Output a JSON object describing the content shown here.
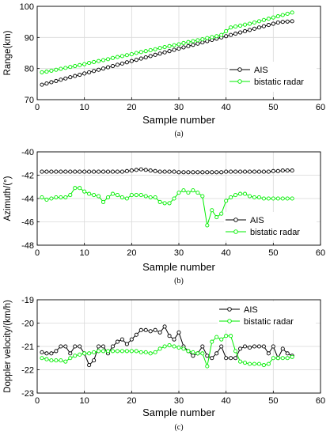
{
  "chart_data": [
    {
      "type": "line",
      "caption": "(a)",
      "xlabel": "Sample number",
      "ylabel": "Range(km)",
      "xlim": [
        0,
        60
      ],
      "ylim": [
        70,
        100
      ],
      "xticks": [
        "0",
        "10",
        "20",
        "30",
        "40",
        "50",
        "60"
      ],
      "yticks": [
        "70",
        "80",
        "90",
        "100"
      ],
      "grid": true,
      "legend_position": "right",
      "series": [
        {
          "name": "AIS",
          "color": "#000000",
          "marker": "circle",
          "x": [
            1,
            2,
            3,
            4,
            5,
            6,
            7,
            8,
            9,
            10,
            11,
            12,
            13,
            14,
            15,
            16,
            17,
            18,
            19,
            20,
            21,
            22,
            23,
            24,
            25,
            26,
            27,
            28,
            29,
            30,
            31,
            32,
            33,
            34,
            35,
            36,
            37,
            38,
            39,
            40,
            41,
            42,
            43,
            44,
            45,
            46,
            47,
            48,
            49,
            50,
            51,
            52,
            53,
            54
          ],
          "values": [
            74.8,
            75.2,
            75.6,
            76.0,
            76.4,
            76.8,
            77.2,
            77.6,
            78.0,
            78.4,
            78.8,
            79.2,
            79.6,
            80.0,
            80.4,
            80.8,
            81.2,
            81.6,
            82.0,
            82.4,
            82.8,
            83.2,
            83.6,
            84.0,
            84.4,
            84.8,
            85.2,
            85.6,
            86.0,
            86.4,
            86.8,
            87.2,
            87.6,
            88.0,
            88.4,
            88.8,
            89.2,
            89.6,
            90.0,
            90.4,
            90.8,
            91.2,
            91.6,
            92.0,
            92.4,
            92.8,
            93.2,
            93.6,
            94.0,
            94.4,
            94.8,
            95.0,
            95.1,
            95.2
          ]
        },
        {
          "name": "bistatic radar",
          "color": "#00ee00",
          "marker": "circle",
          "x": [
            1,
            2,
            3,
            4,
            5,
            6,
            7,
            8,
            9,
            10,
            11,
            12,
            13,
            14,
            15,
            16,
            17,
            18,
            19,
            20,
            21,
            22,
            23,
            24,
            25,
            26,
            27,
            28,
            29,
            30,
            31,
            32,
            33,
            34,
            35,
            36,
            37,
            38,
            39,
            40,
            41,
            42,
            43,
            44,
            45,
            46,
            47,
            48,
            49,
            50,
            51,
            52,
            53,
            54
          ],
          "values": [
            78.8,
            79.0,
            79.3,
            79.6,
            79.9,
            80.2,
            80.5,
            80.8,
            81.1,
            81.4,
            81.8,
            82.1,
            82.4,
            82.7,
            83.0,
            83.4,
            83.7,
            84.0,
            84.3,
            84.6,
            85.0,
            85.3,
            85.6,
            85.9,
            86.2,
            86.6,
            86.9,
            87.2,
            87.5,
            87.8,
            88.2,
            88.5,
            88.8,
            89.1,
            89.4,
            89.8,
            90.1,
            90.4,
            90.8,
            92.0,
            93.2,
            93.5,
            93.8,
            94.1,
            94.4,
            94.8,
            95.2,
            95.6,
            96.0,
            96.4,
            96.8,
            97.2,
            97.6,
            98.0
          ]
        }
      ]
    },
    {
      "type": "line",
      "caption": "(b)",
      "xlabel": "Sample number",
      "ylabel": "Azimuth/(°)",
      "xlim": [
        0,
        60
      ],
      "ylim": [
        -48,
        -40
      ],
      "xticks": [
        "0",
        "10",
        "20",
        "30",
        "40",
        "50",
        "60"
      ],
      "yticks": [
        "-48",
        "-46",
        "-44",
        "-42",
        "-40"
      ],
      "grid": true,
      "legend_position": "bottom-right",
      "series": [
        {
          "name": "AIS",
          "color": "#000000",
          "marker": "circle",
          "x": [
            1,
            2,
            3,
            4,
            5,
            6,
            7,
            8,
            9,
            10,
            11,
            12,
            13,
            14,
            15,
            16,
            17,
            18,
            19,
            20,
            21,
            22,
            23,
            24,
            25,
            26,
            27,
            28,
            29,
            30,
            31,
            32,
            33,
            34,
            35,
            36,
            37,
            38,
            39,
            40,
            41,
            42,
            43,
            44,
            45,
            46,
            47,
            48,
            49,
            50,
            51,
            52,
            53,
            54
          ],
          "values": [
            -41.7,
            -41.7,
            -41.7,
            -41.7,
            -41.7,
            -41.7,
            -41.7,
            -41.7,
            -41.7,
            -41.7,
            -41.7,
            -41.7,
            -41.7,
            -41.7,
            -41.7,
            -41.7,
            -41.7,
            -41.7,
            -41.65,
            -41.6,
            -41.55,
            -41.5,
            -41.55,
            -41.6,
            -41.65,
            -41.7,
            -41.7,
            -41.7,
            -41.7,
            -41.75,
            -41.75,
            -41.75,
            -41.75,
            -41.75,
            -41.75,
            -41.75,
            -41.75,
            -41.75,
            -41.75,
            -41.7,
            -41.7,
            -41.7,
            -41.7,
            -41.7,
            -41.7,
            -41.7,
            -41.7,
            -41.7,
            -41.7,
            -41.65,
            -41.65,
            -41.6,
            -41.6,
            -41.6
          ]
        },
        {
          "name": "bistatic radar",
          "color": "#00ee00",
          "marker": "circle",
          "x": [
            1,
            2,
            3,
            4,
            5,
            6,
            7,
            8,
            9,
            10,
            11,
            12,
            13,
            14,
            15,
            16,
            17,
            18,
            19,
            20,
            21,
            22,
            23,
            24,
            25,
            26,
            27,
            28,
            29,
            30,
            31,
            32,
            33,
            34,
            35,
            36,
            37,
            38,
            39,
            40,
            41,
            42,
            43,
            44,
            45,
            46,
            47,
            48,
            49,
            50,
            51,
            52,
            53,
            54
          ],
          "values": [
            -43.9,
            -44.1,
            -44.0,
            -43.9,
            -43.9,
            -43.9,
            -43.7,
            -43.1,
            -43.1,
            -43.4,
            -43.6,
            -43.7,
            -43.8,
            -44.3,
            -43.9,
            -43.6,
            -43.7,
            -43.9,
            -44.0,
            -43.7,
            -43.7,
            -43.7,
            -43.8,
            -43.9,
            -43.9,
            -44.3,
            -44.4,
            -44.4,
            -44.0,
            -43.5,
            -43.3,
            -43.5,
            -43.3,
            -43.5,
            -43.8,
            -46.3,
            -45.0,
            -45.6,
            -45.3,
            -44.2,
            -43.9,
            -43.7,
            -43.6,
            -43.6,
            -43.8,
            -43.9,
            -43.9,
            -44.0,
            -44.0,
            -44.0,
            -44.0,
            -44.0,
            -44.0,
            -44.0
          ]
        }
      ]
    },
    {
      "type": "line",
      "caption": "(c)",
      "xlabel": "Sample number",
      "ylabel": "Doppler velocity/(km/h)",
      "xlim": [
        0,
        60
      ],
      "ylim": [
        -23,
        -19
      ],
      "xticks": [
        "0",
        "10",
        "20",
        "30",
        "40",
        "50",
        "60"
      ],
      "yticks": [
        "-23",
        "-22",
        "-21",
        "-20",
        "-19"
      ],
      "grid": true,
      "legend_position": "top-right",
      "series": [
        {
          "name": "AIS",
          "color": "#000000",
          "marker": "circle",
          "x": [
            1,
            2,
            3,
            4,
            5,
            6,
            7,
            8,
            9,
            10,
            11,
            12,
            13,
            14,
            15,
            16,
            17,
            18,
            19,
            20,
            21,
            22,
            23,
            24,
            25,
            26,
            27,
            28,
            29,
            30,
            31,
            32,
            33,
            34,
            35,
            36,
            37,
            38,
            39,
            40,
            41,
            42,
            43,
            44,
            45,
            46,
            47,
            48,
            49,
            50,
            51,
            52,
            53,
            54
          ],
          "values": [
            -21.25,
            -21.3,
            -21.3,
            -21.2,
            -21.0,
            -21.0,
            -21.3,
            -21.0,
            -21.0,
            -21.3,
            -21.8,
            -21.6,
            -21.0,
            -21.0,
            -21.3,
            -21.0,
            -20.8,
            -20.7,
            -20.9,
            -20.7,
            -20.5,
            -20.3,
            -20.3,
            -20.35,
            -20.3,
            -20.4,
            -20.15,
            -20.55,
            -20.7,
            -20.4,
            -21.0,
            -21.2,
            -21.4,
            -21.3,
            -21.0,
            -21.4,
            -21.5,
            -21.3,
            -21.0,
            -21.5,
            -21.5,
            -21.5,
            -21.1,
            -21.0,
            -21.05,
            -21.0,
            -21.0,
            -21.0,
            -21.3,
            -21.0,
            -21.5,
            -21.1,
            -21.3,
            -21.4
          ]
        },
        {
          "name": "bistatic radar",
          "color": "#00ee00",
          "marker": "circle",
          "x": [
            1,
            2,
            3,
            4,
            5,
            6,
            7,
            8,
            9,
            10,
            11,
            12,
            13,
            14,
            15,
            16,
            17,
            18,
            19,
            20,
            21,
            22,
            23,
            24,
            25,
            26,
            27,
            28,
            29,
            30,
            31,
            32,
            33,
            34,
            35,
            36,
            37,
            38,
            39,
            40,
            41,
            42,
            43,
            44,
            45,
            46,
            47,
            48,
            49,
            50,
            51,
            52,
            53,
            54
          ],
          "values": [
            -21.5,
            -21.55,
            -21.6,
            -21.6,
            -21.6,
            -21.65,
            -21.5,
            -21.4,
            -21.35,
            -21.3,
            -21.3,
            -21.25,
            -21.2,
            -21.2,
            -21.2,
            -21.2,
            -21.2,
            -21.2,
            -21.2,
            -21.2,
            -21.2,
            -21.25,
            -21.25,
            -21.3,
            -21.25,
            -21.1,
            -21.0,
            -20.95,
            -21.0,
            -21.05,
            -21.1,
            -21.2,
            -21.25,
            -21.3,
            -21.3,
            -21.85,
            -20.8,
            -20.6,
            -20.7,
            -20.55,
            -20.55,
            -21.2,
            -21.65,
            -21.7,
            -21.75,
            -21.75,
            -21.75,
            -21.8,
            -21.75,
            -21.5,
            -21.5,
            -21.5,
            -21.5,
            -21.45
          ]
        }
      ]
    }
  ]
}
